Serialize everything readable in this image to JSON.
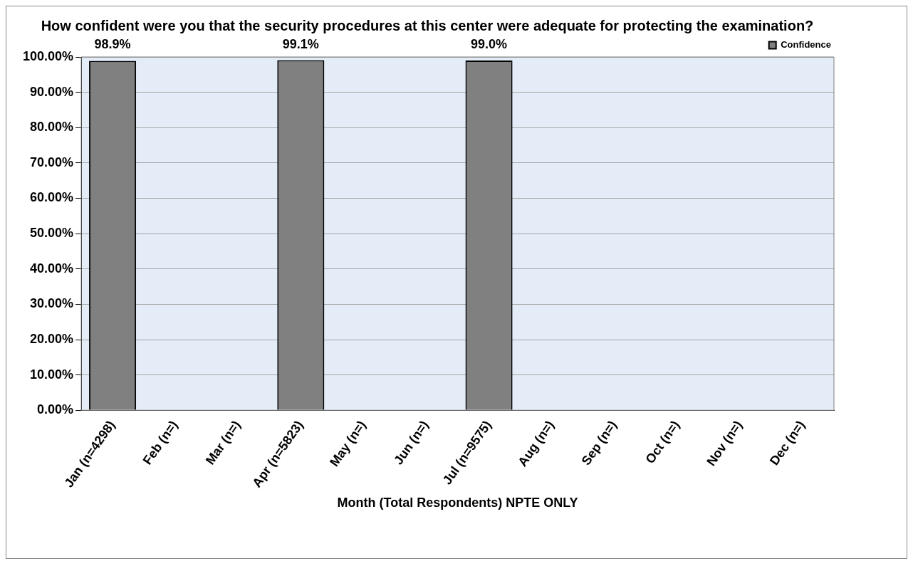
{
  "chart_data": {
    "type": "bar",
    "title": "How confident were you that the security procedures at this center were adequate for protecting the examination?",
    "xlabel": "Month (Total Respondents) NPTE ONLY",
    "categories": [
      "Jan (n=4298)",
      "Feb (n=)",
      "Mar (n=)",
      "Apr (n=5823)",
      "May (n=)",
      "Jun (n=)",
      "Jul (n=9575)",
      "Aug (n=)",
      "Sep (n=)",
      "Oct (n=)",
      "Nov (n=)",
      "Dec (n=)"
    ],
    "series": [
      {
        "name": "Confidence",
        "color": "#808080",
        "values": [
          98.9,
          null,
          null,
          99.1,
          null,
          null,
          99.0,
          null,
          null,
          null,
          null,
          null
        ],
        "value_labels": [
          "98.9%",
          null,
          null,
          "99.1%",
          null,
          null,
          "99.0%",
          null,
          null,
          null,
          null,
          null
        ]
      }
    ],
    "ylim": [
      0,
      100
    ],
    "yticks": [
      {
        "value": 0,
        "label": "0.00%"
      },
      {
        "value": 10,
        "label": "10.00%"
      },
      {
        "value": 20,
        "label": "20.00%"
      },
      {
        "value": 30,
        "label": "30.00%"
      },
      {
        "value": 40,
        "label": "40.00%"
      },
      {
        "value": 50,
        "label": "50.00%"
      },
      {
        "value": 60,
        "label": "60.00%"
      },
      {
        "value": 70,
        "label": "70.00%"
      },
      {
        "value": 80,
        "label": "80.00%"
      },
      {
        "value": 90,
        "label": "90.00%"
      },
      {
        "value": 100,
        "label": "100.00%"
      }
    ],
    "grid": "y",
    "legend": "top right"
  }
}
